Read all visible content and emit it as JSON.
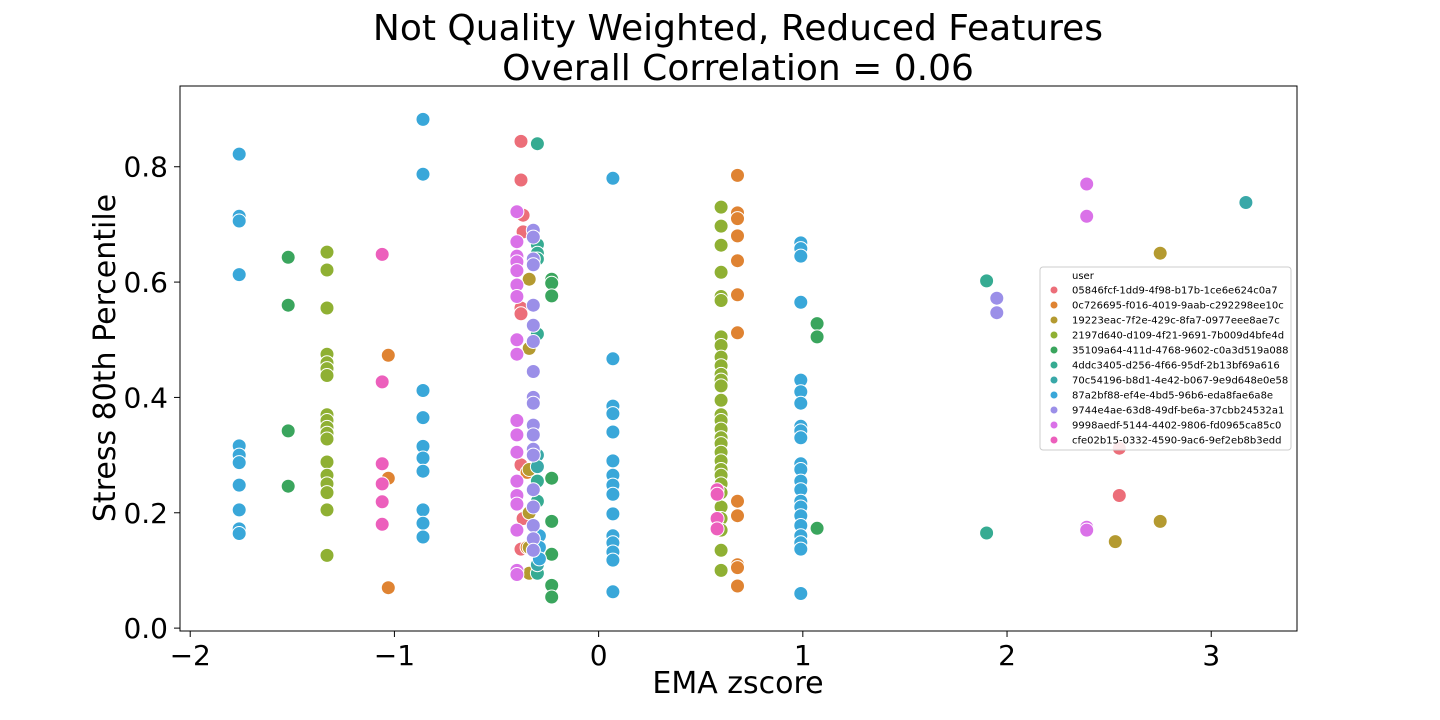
{
  "chart_data": {
    "type": "scatter",
    "title": "Not Quality Weighted, Reduced Features",
    "subtitle": "Overall Correlation = 0.06",
    "xlabel": "EMA zscore",
    "ylabel": "Stress 80th Percentile",
    "xlim": [
      -2.05,
      3.42
    ],
    "ylim": [
      -0.005,
      0.94
    ],
    "xticks": [
      -2,
      -1,
      0,
      1,
      2,
      3
    ],
    "xtick_labels": [
      "−2",
      "−1",
      "0",
      "1",
      "2",
      "3"
    ],
    "yticks": [
      0.0,
      0.2,
      0.4,
      0.6,
      0.8
    ],
    "ytick_labels": [
      "0.0",
      "0.2",
      "0.4",
      "0.6",
      "0.8"
    ],
    "grid": false,
    "legend": {
      "title": "user",
      "placement": "right"
    },
    "series": [
      {
        "name": "05846fcf-1dd9-4f98-b17b-1ce6e624c0a7",
        "color": "#ec6e79",
        "points": [
          [
            -0.38,
            0.844
          ],
          [
            -0.38,
            0.777
          ],
          [
            -0.37,
            0.716
          ],
          [
            -0.37,
            0.687
          ],
          [
            -0.38,
            0.555
          ],
          [
            -0.38,
            0.545
          ],
          [
            -0.38,
            0.283
          ],
          [
            -0.37,
            0.19
          ],
          [
            -0.38,
            0.137
          ],
          [
            2.55,
            0.312
          ],
          [
            2.55,
            0.23
          ]
        ]
      },
      {
        "name": "0c726695-f016-4019-9aab-c292298ee10c",
        "color": "#df8332",
        "points": [
          [
            -1.03,
            0.473
          ],
          [
            -1.03,
            0.26
          ],
          [
            -1.03,
            0.07
          ],
          [
            -0.35,
            0.27
          ],
          [
            -0.35,
            0.14
          ],
          [
            0.68,
            0.785
          ],
          [
            0.68,
            0.72
          ],
          [
            0.68,
            0.71
          ],
          [
            0.68,
            0.68
          ],
          [
            0.68,
            0.637
          ],
          [
            0.68,
            0.578
          ],
          [
            0.68,
            0.512
          ],
          [
            0.68,
            0.22
          ],
          [
            0.68,
            0.195
          ],
          [
            0.68,
            0.11
          ],
          [
            0.68,
            0.105
          ],
          [
            0.68,
            0.073
          ]
        ]
      },
      {
        "name": "19223eac-7f2e-429c-8fa7-0977eee8ae7c",
        "color": "#b49a30",
        "points": [
          [
            -0.34,
            0.605
          ],
          [
            -0.34,
            0.485
          ],
          [
            -0.34,
            0.275
          ],
          [
            -0.34,
            0.2
          ],
          [
            -0.34,
            0.14
          ],
          [
            -0.34,
            0.095
          ],
          [
            2.75,
            0.65
          ],
          [
            2.75,
            0.185
          ],
          [
            2.53,
            0.15
          ]
        ]
      },
      {
        "name": "2197d640-d109-4f21-9691-7b009d4bfe4d",
        "color": "#8fb033",
        "points": [
          [
            -1.33,
            0.652
          ],
          [
            -1.33,
            0.621
          ],
          [
            -1.33,
            0.555
          ],
          [
            -1.33,
            0.475
          ],
          [
            -1.33,
            0.46
          ],
          [
            -1.33,
            0.45
          ],
          [
            -1.33,
            0.438
          ],
          [
            -1.33,
            0.37
          ],
          [
            -1.33,
            0.36
          ],
          [
            -1.33,
            0.348
          ],
          [
            -1.33,
            0.338
          ],
          [
            -1.33,
            0.328
          ],
          [
            -1.33,
            0.288
          ],
          [
            -1.33,
            0.265
          ],
          [
            -1.33,
            0.25
          ],
          [
            -1.33,
            0.235
          ],
          [
            -1.33,
            0.205
          ],
          [
            -1.33,
            0.126
          ],
          [
            0.6,
            0.73
          ],
          [
            0.6,
            0.697
          ],
          [
            0.6,
            0.664
          ],
          [
            0.6,
            0.617
          ],
          [
            0.6,
            0.575
          ],
          [
            0.6,
            0.568
          ],
          [
            0.6,
            0.505
          ],
          [
            0.6,
            0.49
          ],
          [
            0.6,
            0.47
          ],
          [
            0.6,
            0.455
          ],
          [
            0.6,
            0.44
          ],
          [
            0.6,
            0.43
          ],
          [
            0.6,
            0.42
          ],
          [
            0.6,
            0.395
          ],
          [
            0.6,
            0.37
          ],
          [
            0.6,
            0.36
          ],
          [
            0.6,
            0.345
          ],
          [
            0.6,
            0.33
          ],
          [
            0.6,
            0.32
          ],
          [
            0.6,
            0.305
          ],
          [
            0.6,
            0.29
          ],
          [
            0.6,
            0.275
          ],
          [
            0.6,
            0.265
          ],
          [
            0.6,
            0.25
          ],
          [
            0.6,
            0.235
          ],
          [
            0.6,
            0.21
          ],
          [
            0.6,
            0.19
          ],
          [
            0.6,
            0.17
          ],
          [
            0.6,
            0.135
          ],
          [
            0.6,
            0.1
          ]
        ]
      },
      {
        "name": "35109a64-411d-4768-9602-c0a3d519a088",
        "color": "#3aa55d",
        "points": [
          [
            -1.52,
            0.643
          ],
          [
            -1.52,
            0.56
          ],
          [
            -1.52,
            0.342
          ],
          [
            -1.52,
            0.246
          ],
          [
            -0.23,
            0.605
          ],
          [
            -0.23,
            0.598
          ],
          [
            -0.23,
            0.576
          ],
          [
            -0.23,
            0.26
          ],
          [
            -0.23,
            0.185
          ],
          [
            -0.23,
            0.128
          ],
          [
            -0.23,
            0.074
          ],
          [
            -0.23,
            0.054
          ],
          [
            1.07,
            0.528
          ],
          [
            1.07,
            0.505
          ],
          [
            1.07,
            0.173
          ]
        ]
      },
      {
        "name": "4ddc3405-d256-4f66-95df-2b13bf69a616",
        "color": "#36ab92",
        "points": [
          [
            -0.3,
            0.84
          ],
          [
            -0.3,
            0.665
          ],
          [
            -0.3,
            0.65
          ],
          [
            -0.3,
            0.64
          ],
          [
            -0.3,
            0.51
          ],
          [
            -0.3,
            0.255
          ],
          [
            -0.3,
            0.22
          ],
          [
            -0.3,
            0.15
          ],
          [
            -0.3,
            0.095
          ],
          [
            1.9,
            0.602
          ],
          [
            1.9,
            0.165
          ]
        ]
      },
      {
        "name": "70c54196-b8d1-4e42-b067-9e9d648e0e58",
        "color": "#39a8a8",
        "points": [
          [
            -0.3,
            0.3
          ],
          [
            -0.3,
            0.28
          ],
          [
            -0.3,
            0.13
          ],
          [
            -0.3,
            0.11
          ],
          [
            3.17,
            0.738
          ]
        ]
      },
      {
        "name": "87a2bf88-ef4e-4bd5-96b6-eda8fae6a8e",
        "color": "#39a7d9",
        "points": [
          [
            -1.76,
            0.822
          ],
          [
            -1.76,
            0.714
          ],
          [
            -1.76,
            0.706
          ],
          [
            -1.76,
            0.613
          ],
          [
            -1.76,
            0.316
          ],
          [
            -1.76,
            0.3
          ],
          [
            -1.76,
            0.287
          ],
          [
            -1.76,
            0.248
          ],
          [
            -1.76,
            0.205
          ],
          [
            -1.76,
            0.172
          ],
          [
            -1.76,
            0.164
          ],
          [
            -0.86,
            0.882
          ],
          [
            -0.86,
            0.787
          ],
          [
            -0.86,
            0.412
          ],
          [
            -0.86,
            0.365
          ],
          [
            -0.86,
            0.315
          ],
          [
            -0.86,
            0.295
          ],
          [
            -0.86,
            0.272
          ],
          [
            -0.86,
            0.205
          ],
          [
            -0.86,
            0.182
          ],
          [
            -0.86,
            0.158
          ],
          [
            0.07,
            0.78
          ],
          [
            0.07,
            0.467
          ],
          [
            0.07,
            0.385
          ],
          [
            0.07,
            0.372
          ],
          [
            0.07,
            0.34
          ],
          [
            0.07,
            0.29
          ],
          [
            0.07,
            0.265
          ],
          [
            0.07,
            0.248
          ],
          [
            0.07,
            0.232
          ],
          [
            0.07,
            0.198
          ],
          [
            0.07,
            0.16
          ],
          [
            0.07,
            0.148
          ],
          [
            0.07,
            0.132
          ],
          [
            0.07,
            0.118
          ],
          [
            0.07,
            0.063
          ],
          [
            0.99,
            0.668
          ],
          [
            0.99,
            0.658
          ],
          [
            0.99,
            0.645
          ],
          [
            0.99,
            0.565
          ],
          [
            0.99,
            0.43
          ],
          [
            0.99,
            0.41
          ],
          [
            0.99,
            0.39
          ],
          [
            0.99,
            0.35
          ],
          [
            0.99,
            0.342
          ],
          [
            0.99,
            0.33
          ],
          [
            0.99,
            0.285
          ],
          [
            0.99,
            0.275
          ],
          [
            0.99,
            0.255
          ],
          [
            0.99,
            0.24
          ],
          [
            0.99,
            0.22
          ],
          [
            0.99,
            0.21
          ],
          [
            0.99,
            0.195
          ],
          [
            0.99,
            0.178
          ],
          [
            0.99,
            0.16
          ],
          [
            0.99,
            0.148
          ],
          [
            0.99,
            0.137
          ],
          [
            0.99,
            0.06
          ],
          [
            -0.29,
            0.16
          ],
          [
            -0.29,
            0.14
          ],
          [
            -0.29,
            0.12
          ]
        ]
      },
      {
        "name": "9744e4ae-63d8-49df-be6a-37cbb24532a1",
        "color": "#9b8fe8",
        "points": [
          [
            -0.32,
            0.69
          ],
          [
            -0.32,
            0.678
          ],
          [
            -0.32,
            0.64
          ],
          [
            -0.32,
            0.63
          ],
          [
            -0.32,
            0.56
          ],
          [
            -0.32,
            0.525
          ],
          [
            -0.32,
            0.497
          ],
          [
            -0.32,
            0.445
          ],
          [
            -0.32,
            0.4
          ],
          [
            -0.32,
            0.39
          ],
          [
            -0.32,
            0.352
          ],
          [
            -0.32,
            0.335
          ],
          [
            -0.32,
            0.31
          ],
          [
            -0.32,
            0.3
          ],
          [
            -0.32,
            0.24
          ],
          [
            -0.32,
            0.21
          ],
          [
            -0.32,
            0.178
          ],
          [
            -0.32,
            0.155
          ],
          [
            -0.32,
            0.135
          ],
          [
            1.95,
            0.572
          ],
          [
            1.95,
            0.547
          ]
        ]
      },
      {
        "name": "9998aedf-5144-4402-9806-fd0965ca85c0",
        "color": "#da71e8",
        "points": [
          [
            -0.4,
            0.722
          ],
          [
            -0.4,
            0.67
          ],
          [
            -0.4,
            0.645
          ],
          [
            -0.4,
            0.635
          ],
          [
            -0.4,
            0.62
          ],
          [
            -0.4,
            0.595
          ],
          [
            -0.4,
            0.575
          ],
          [
            -0.4,
            0.5
          ],
          [
            -0.4,
            0.475
          ],
          [
            -0.4,
            0.36
          ],
          [
            -0.4,
            0.335
          ],
          [
            -0.4,
            0.305
          ],
          [
            -0.4,
            0.255
          ],
          [
            -0.4,
            0.23
          ],
          [
            -0.4,
            0.215
          ],
          [
            -0.4,
            0.17
          ],
          [
            -0.4,
            0.1
          ],
          [
            -0.4,
            0.093
          ],
          [
            2.39,
            0.77
          ],
          [
            2.39,
            0.714
          ],
          [
            2.39,
            0.175
          ],
          [
            2.39,
            0.17
          ]
        ]
      },
      {
        "name": "cfe02b15-0332-4590-9ac6-9ef2eb8b3edd",
        "color": "#ec5fbc",
        "points": [
          [
            -1.06,
            0.648
          ],
          [
            -1.06,
            0.427
          ],
          [
            -1.06,
            0.285
          ],
          [
            -1.06,
            0.25
          ],
          [
            -1.06,
            0.219
          ],
          [
            -1.06,
            0.18
          ],
          [
            0.58,
            0.24
          ],
          [
            0.58,
            0.232
          ],
          [
            0.58,
            0.19
          ],
          [
            0.58,
            0.172
          ]
        ]
      }
    ]
  }
}
